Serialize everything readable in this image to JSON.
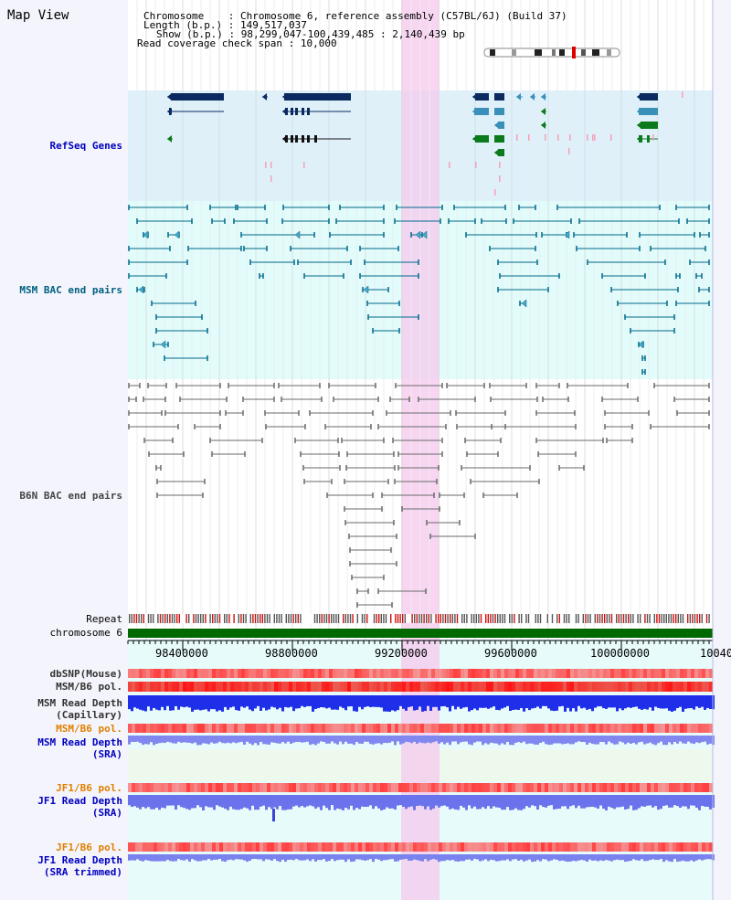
{
  "header": {
    "title": "Map View",
    "chromosome_label": "Chromosome",
    "chromosome_value": "Chromosome 6, reference assembly (C57BL/6J) (Build 37)",
    "length_label": "Length (b.p.)",
    "length_value": "149,517,037",
    "show_label": "Show (b.p.)",
    "show_value": "98,299,047-100,439,485 : 2,140,439 bp",
    "span_label": "Read coverage check span",
    "span_value": "10,000"
  },
  "tracks": {
    "refseq": "RefSeq Genes",
    "msm_bac": "MSM BAC end pairs",
    "b6n_bac": "B6N BAC end pairs",
    "repeat": "Repeat",
    "chromosome": "chromosome 6",
    "dbsnp": "dbSNP(Mouse)",
    "msm_b6_pol": "MSM/B6 pol.",
    "msm_depth_cap_1": "MSM Read Depth",
    "msm_depth_cap_2": "(Capillary)",
    "msm_b6_pol_sra": "MSM/B6 pol.",
    "msm_depth_sra_1": "MSM Read Depth",
    "msm_depth_sra_2": "(SRA)",
    "jf1_b6_pol": "JF1/B6 pol.",
    "jf1_depth_sra_1": "JF1 Read Depth",
    "jf1_depth_sra_2": "(SRA)",
    "jf1_b6_pol_trim": "JF1/B6 pol.",
    "jf1_depth_trim_1": "JF1 Read Depth",
    "jf1_depth_trim_2": "(SRA trimmed)"
  },
  "scale": {
    "ticks": [
      "98400000",
      "98800000",
      "99200000",
      "99600000",
      "100000000",
      "10040"
    ]
  },
  "colors": {
    "refseq_bg": "#def1fa",
    "msm_bg": "#e2fbfb",
    "highlight": "#f9d9f3",
    "msm_line": "#006080",
    "b6n_line": "#707070",
    "chromosome": "#006a00",
    "label_blue": "#0000c0",
    "label_orange": "#e08000",
    "label_teal": "#006080"
  }
}
